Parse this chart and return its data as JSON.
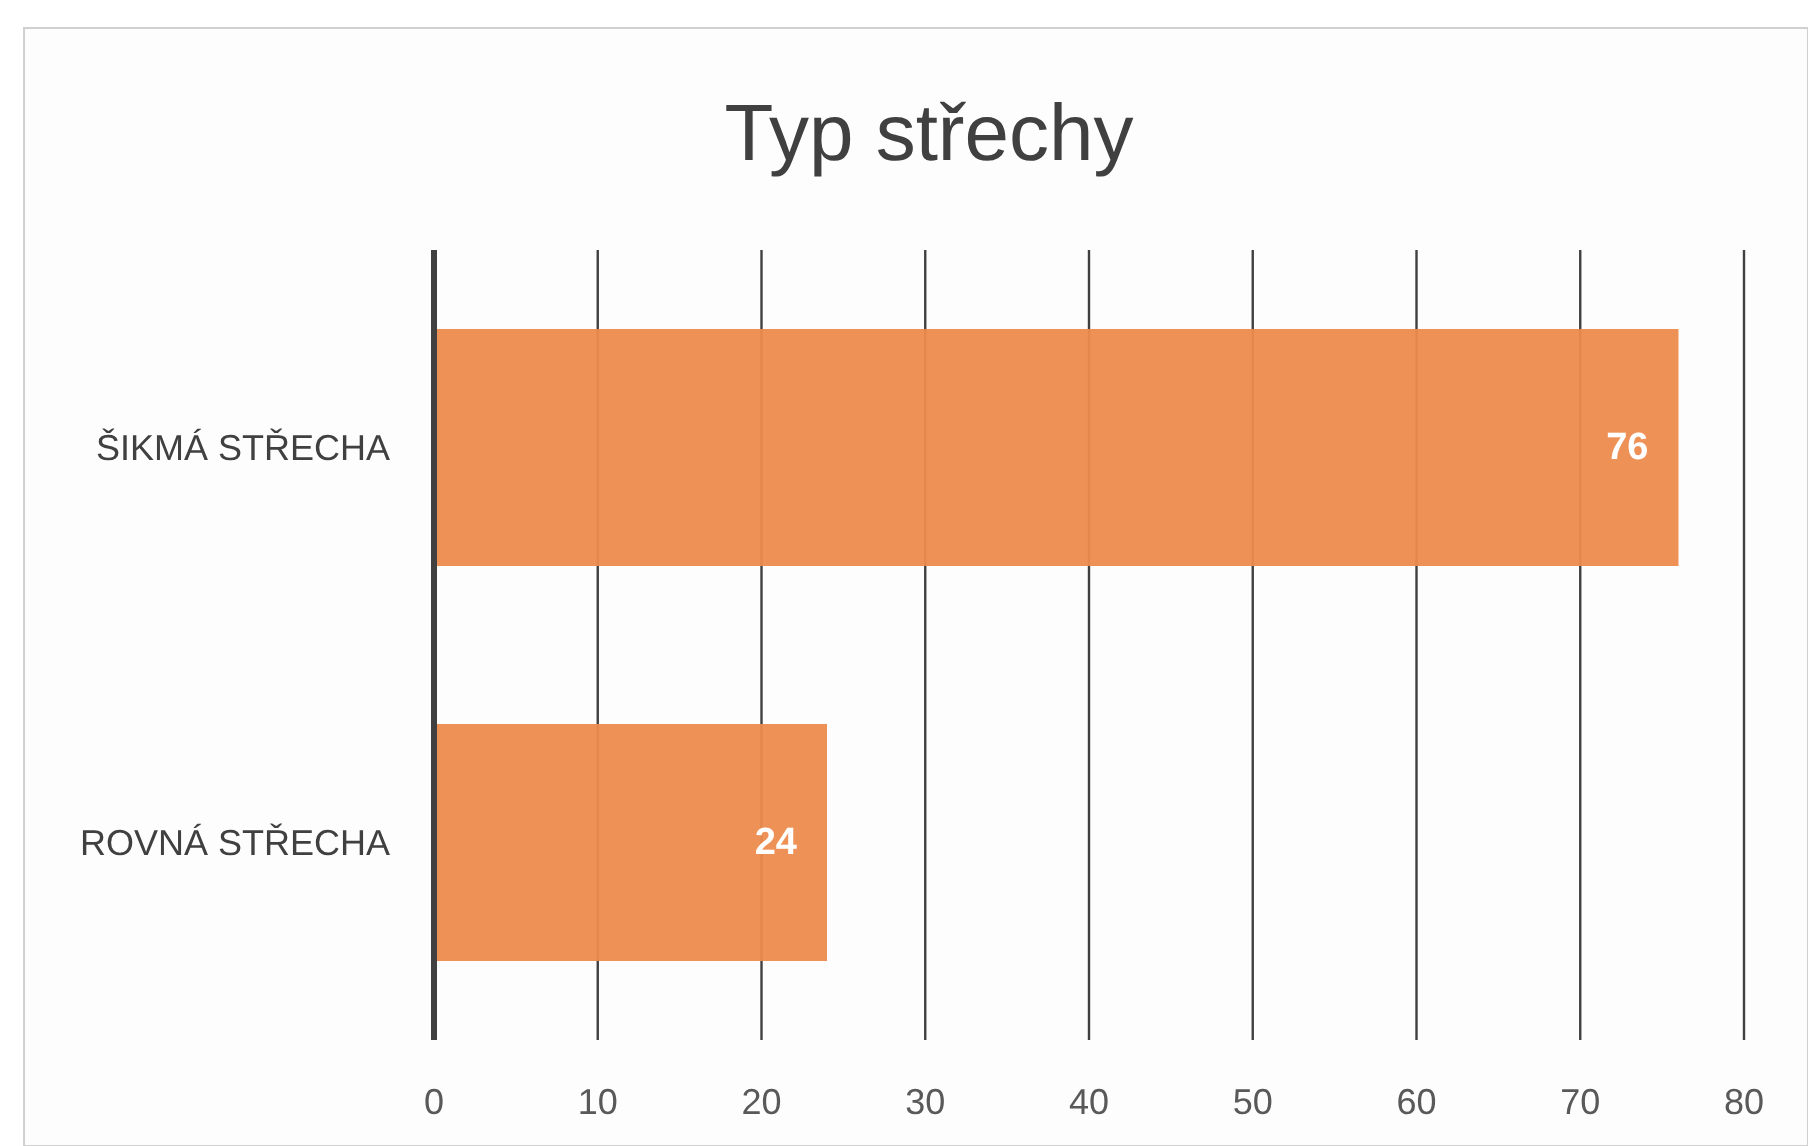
{
  "chart_data": {
    "type": "bar",
    "orientation": "horizontal",
    "title": "Typ střechy",
    "categories": [
      "ŠIKMÁ STŘECHA",
      "ROVNÁ STŘECHA"
    ],
    "values": [
      76,
      24
    ],
    "color": "#ed8b4e",
    "xlim": [
      0,
      80
    ],
    "xticks": [
      0,
      10,
      20,
      30,
      40,
      50,
      60,
      70,
      80
    ],
    "grid": "x",
    "data_labels": true
  }
}
